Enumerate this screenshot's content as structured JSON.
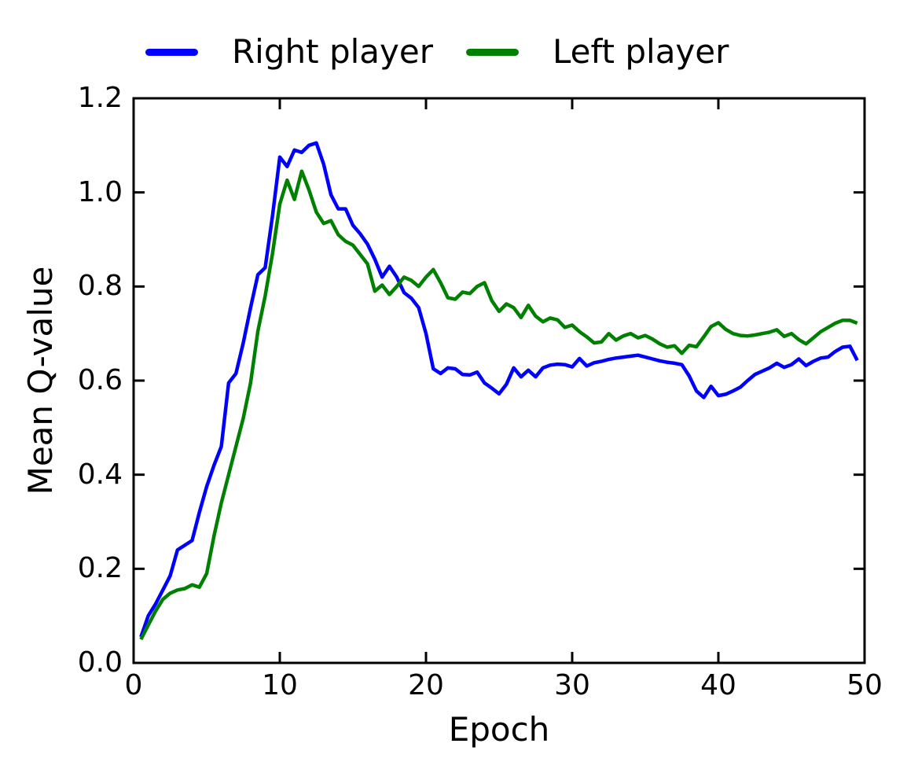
{
  "chart_data": {
    "type": "line",
    "title": "",
    "xlabel": "Epoch",
    "ylabel": "Mean Q-value",
    "xlim": [
      0,
      50
    ],
    "ylim": [
      0.0,
      1.2
    ],
    "xticks": [
      0,
      10,
      20,
      30,
      40,
      50
    ],
    "xtick_labels": [
      "0",
      "10",
      "20",
      "30",
      "40",
      "50"
    ],
    "yticks": [
      0.0,
      0.2,
      0.4,
      0.6,
      0.8,
      1.0,
      1.2
    ],
    "ytick_labels": [
      "0.0",
      "0.2",
      "0.4",
      "0.6",
      "0.8",
      "1.0",
      "1.2"
    ],
    "grid": false,
    "legend_position": "top",
    "legend_frame": false,
    "axis_color": "#000000",
    "background_color": "#ffffff",
    "x_start": 0.5,
    "x_step": 0.5,
    "series": [
      {
        "name": "Right player",
        "color": "#0000ff",
        "values": [
          0.055,
          0.1,
          0.125,
          0.155,
          0.185,
          0.24,
          0.25,
          0.26,
          0.32,
          0.375,
          0.42,
          0.46,
          0.595,
          0.615,
          0.68,
          0.755,
          0.825,
          0.84,
          0.95,
          1.075,
          1.055,
          1.09,
          1.085,
          1.1,
          1.105,
          1.06,
          0.995,
          0.965,
          0.965,
          0.93,
          0.912,
          0.89,
          0.858,
          0.82,
          0.843,
          0.82,
          0.787,
          0.775,
          0.755,
          0.7,
          0.625,
          0.615,
          0.627,
          0.625,
          0.613,
          0.612,
          0.618,
          0.595,
          0.584,
          0.572,
          0.592,
          0.627,
          0.608,
          0.622,
          0.608,
          0.627,
          0.633,
          0.635,
          0.634,
          0.629,
          0.647,
          0.631,
          0.638,
          0.641,
          0.645,
          0.648,
          0.65,
          0.652,
          0.654,
          0.65,
          0.646,
          0.642,
          0.639,
          0.637,
          0.634,
          0.61,
          0.578,
          0.564,
          0.588,
          0.568,
          0.571,
          0.578,
          0.586,
          0.6,
          0.613,
          0.62,
          0.627,
          0.637,
          0.628,
          0.634,
          0.646,
          0.632,
          0.641,
          0.648,
          0.65,
          0.662,
          0.671,
          0.673,
          0.643
        ]
      },
      {
        "name": "Left player",
        "color": "#008000",
        "values": [
          0.05,
          0.08,
          0.11,
          0.135,
          0.148,
          0.155,
          0.158,
          0.166,
          0.161,
          0.19,
          0.27,
          0.34,
          0.4,
          0.46,
          0.52,
          0.595,
          0.705,
          0.78,
          0.87,
          0.975,
          1.026,
          0.985,
          1.045,
          1.005,
          0.958,
          0.934,
          0.94,
          0.91,
          0.896,
          0.888,
          0.868,
          0.848,
          0.79,
          0.803,
          0.783,
          0.8,
          0.82,
          0.813,
          0.8,
          0.82,
          0.836,
          0.808,
          0.776,
          0.773,
          0.788,
          0.785,
          0.8,
          0.808,
          0.77,
          0.747,
          0.763,
          0.755,
          0.734,
          0.76,
          0.737,
          0.725,
          0.733,
          0.729,
          0.713,
          0.718,
          0.704,
          0.693,
          0.68,
          0.682,
          0.7,
          0.686,
          0.695,
          0.7,
          0.691,
          0.696,
          0.688,
          0.678,
          0.671,
          0.674,
          0.658,
          0.675,
          0.672,
          0.693,
          0.715,
          0.723,
          0.709,
          0.7,
          0.696,
          0.695,
          0.697,
          0.7,
          0.703,
          0.708,
          0.694,
          0.7,
          0.687,
          0.678,
          0.691,
          0.704,
          0.713,
          0.722,
          0.728,
          0.728,
          0.722
        ]
      }
    ]
  }
}
